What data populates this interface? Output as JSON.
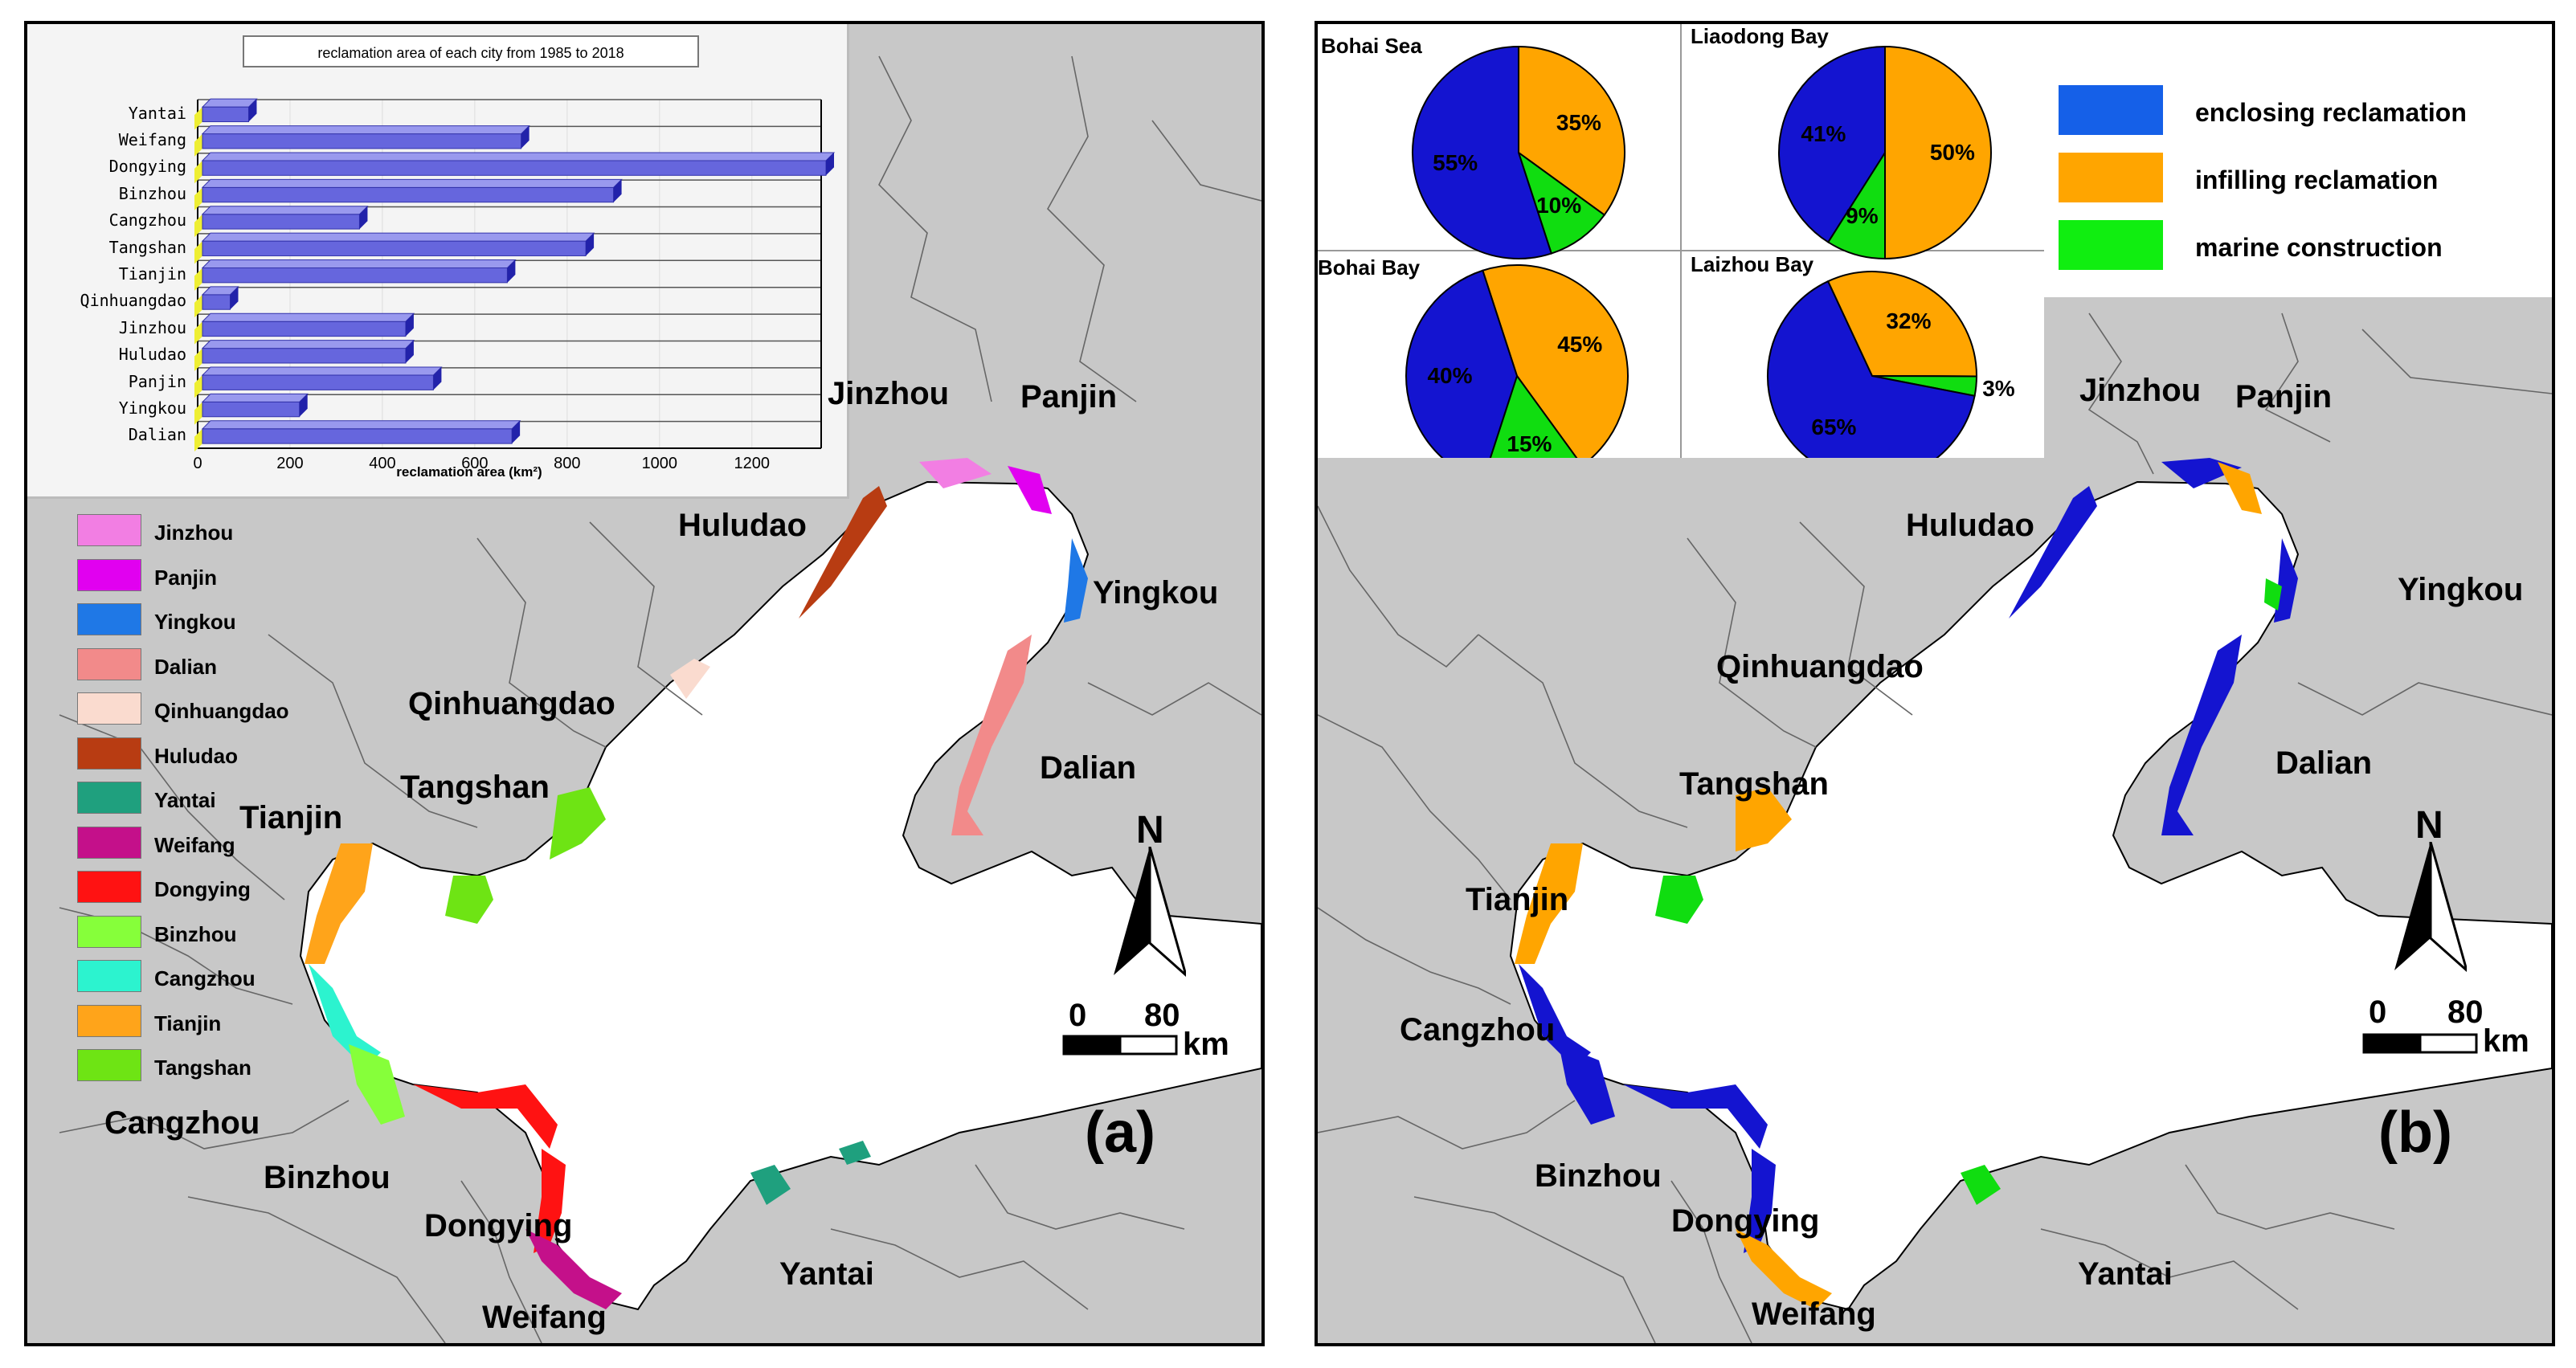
{
  "panel_a": {
    "panel_label": "(a)",
    "north": "N",
    "scale": {
      "zero": "0",
      "max": "80",
      "unit": "km"
    },
    "cities": [
      "Jinzhou",
      "Panjin",
      "Huludao",
      "Yingkou",
      "Qinhuangdao",
      "Dalian",
      "Tangshan",
      "Tianjin",
      "Cangzhou",
      "Binzhou",
      "Dongying",
      "Yantai",
      "Weifang"
    ],
    "legend": [
      {
        "label": "Jinzhou",
        "color": "#f27ee3"
      },
      {
        "label": "Panjin",
        "color": "#e100f0"
      },
      {
        "label": "Yingkou",
        "color": "#1f78e6"
      },
      {
        "label": "Dalian",
        "color": "#f28a8a"
      },
      {
        "label": "Qinhuangdao",
        "color": "#fadbcf"
      },
      {
        "label": "Huludao",
        "color": "#b83c12"
      },
      {
        "label": "Yantai",
        "color": "#1fa07e"
      },
      {
        "label": "Weifang",
        "color": "#c4108a"
      },
      {
        "label": "Dongying",
        "color": "#ff1212"
      },
      {
        "label": "Binzhou",
        "color": "#86ff3a"
      },
      {
        "label": "Cangzhou",
        "color": "#2cf3cf"
      },
      {
        "label": "Tianjin",
        "color": "#ffa41a"
      },
      {
        "label": "Tangshan",
        "color": "#6ee414"
      }
    ]
  },
  "panel_b": {
    "panel_label": "(b)",
    "north": "N",
    "scale": {
      "zero": "0",
      "max": "80",
      "unit": "km"
    },
    "cities": [
      "Jinzhou",
      "Panjin",
      "Huludao",
      "Yingkou",
      "Qinhuangdao",
      "Dalian",
      "Tangshan",
      "Tianjin",
      "Cangzhou",
      "Binzhou",
      "Dongying",
      "Yantai",
      "Weifang"
    ],
    "legend": [
      {
        "label": "enclosing reclamation",
        "color": "#1560e8"
      },
      {
        "label": "infilling reclamation",
        "color": "#ffa500"
      },
      {
        "label": "marine construction",
        "color": "#10ee10"
      }
    ]
  },
  "chart_data": [
    {
      "type": "bar",
      "orientation": "horizontal",
      "title": "reclamation area of each city from 1985 to 2018",
      "xlabel": "reclamation area (km²)",
      "ylabel": "",
      "xlim": [
        0,
        1350
      ],
      "xticks": [
        0,
        200,
        400,
        600,
        800,
        1000,
        1200
      ],
      "categories": [
        "Yantai",
        "Weifang",
        "Dongying",
        "Binzhou",
        "Cangzhou",
        "Tangshan",
        "Tianjin",
        "Qinhuangdao",
        "Jinzhou",
        "Huludao",
        "Panjin",
        "Yingkou",
        "Dalian"
      ],
      "values": [
        100,
        690,
        1350,
        890,
        340,
        830,
        660,
        60,
        440,
        440,
        500,
        210,
        670
      ],
      "bar_color": "#6666dd"
    },
    {
      "type": "pie",
      "title": "Bohai Sea",
      "labels": [
        "enclosing reclamation",
        "infilling reclamation",
        "marine construction"
      ],
      "values": [
        55,
        35,
        10
      ],
      "colors": [
        "#1414d0",
        "#ffa500",
        "#10dd10"
      ]
    },
    {
      "type": "pie",
      "title": "Liaodong Bay",
      "labels": [
        "enclosing reclamation",
        "infilling reclamation",
        "marine construction"
      ],
      "values": [
        41,
        50,
        9
      ],
      "colors": [
        "#1414d0",
        "#ffa500",
        "#10dd10"
      ]
    },
    {
      "type": "pie",
      "title": "Bohai Bay",
      "labels": [
        "enclosing reclamation",
        "infilling reclamation",
        "marine construction"
      ],
      "values": [
        40,
        45,
        15
      ],
      "colors": [
        "#1414d0",
        "#ffa500",
        "#10dd10"
      ]
    },
    {
      "type": "pie",
      "title": "Laizhou Bay",
      "labels": [
        "enclosing reclamation",
        "infilling reclamation",
        "marine construction"
      ],
      "values": [
        65,
        32,
        3
      ],
      "colors": [
        "#1414d0",
        "#ffa500",
        "#10dd10"
      ]
    }
  ]
}
